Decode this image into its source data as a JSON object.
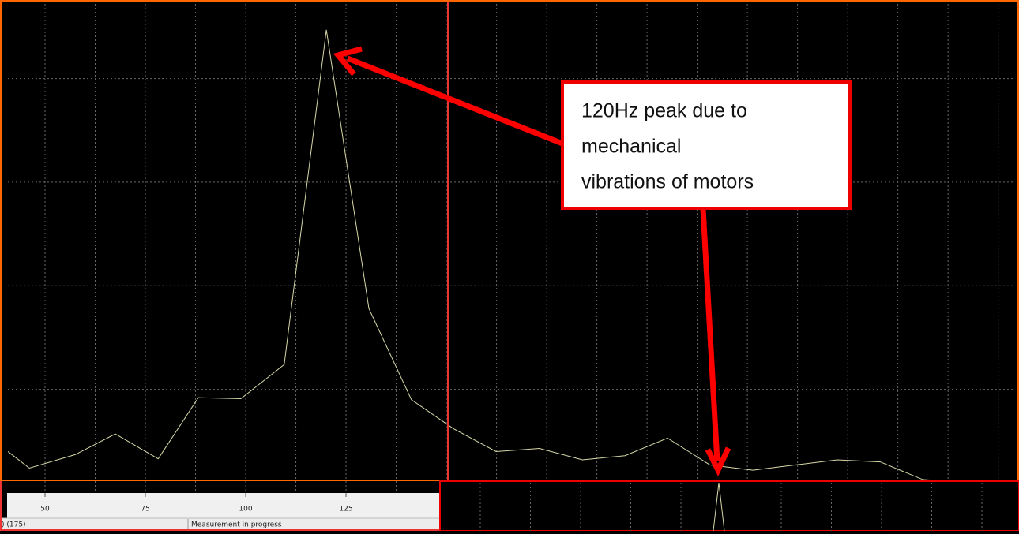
{
  "chart_data": {
    "type": "line",
    "x": [
      40.75,
      46.1,
      57.5,
      67.5,
      78.2,
      88.2,
      98.8,
      109.6,
      120.1,
      130.7,
      141.3,
      151.8,
      162.4,
      173.2,
      183.9,
      194.5,
      205.1,
      215.7,
      226.4,
      236.8,
      247.4,
      258.1,
      268.7,
      279.3
    ],
    "series": [
      {
        "color": "#d8d8a8",
        "values": [
          0.4,
          0.24,
          0.37,
          0.57,
          0.33,
          0.92,
          0.91,
          1.24,
          4.47,
          1.78,
          0.9,
          0.62,
          0.4,
          0.43,
          0.32,
          0.36,
          0.53,
          0.27,
          0.22,
          0.27,
          0.32,
          0.3,
          0.13,
          0.1
        ]
      }
    ],
    "xlim": [
      40.75,
      291.7
    ],
    "ylim": [
      0,
      4.72
    ],
    "xticks": [
      50,
      75,
      100,
      125
    ],
    "xgrid": [
      50,
      62.5,
      75,
      87.5,
      100,
      112.5,
      125,
      137.5,
      150,
      162.5,
      175,
      187.5,
      200,
      212.5,
      225,
      237.5,
      250,
      262.5,
      275,
      287.5
    ],
    "ygrid": [
      1,
      2,
      3,
      4
    ],
    "annotation": [
      "120Hz peak due to",
      "mechanical",
      "vibrations of motors"
    ]
  },
  "status_bar": {
    "left": ") (175)",
    "right": "Measurement in progress"
  }
}
